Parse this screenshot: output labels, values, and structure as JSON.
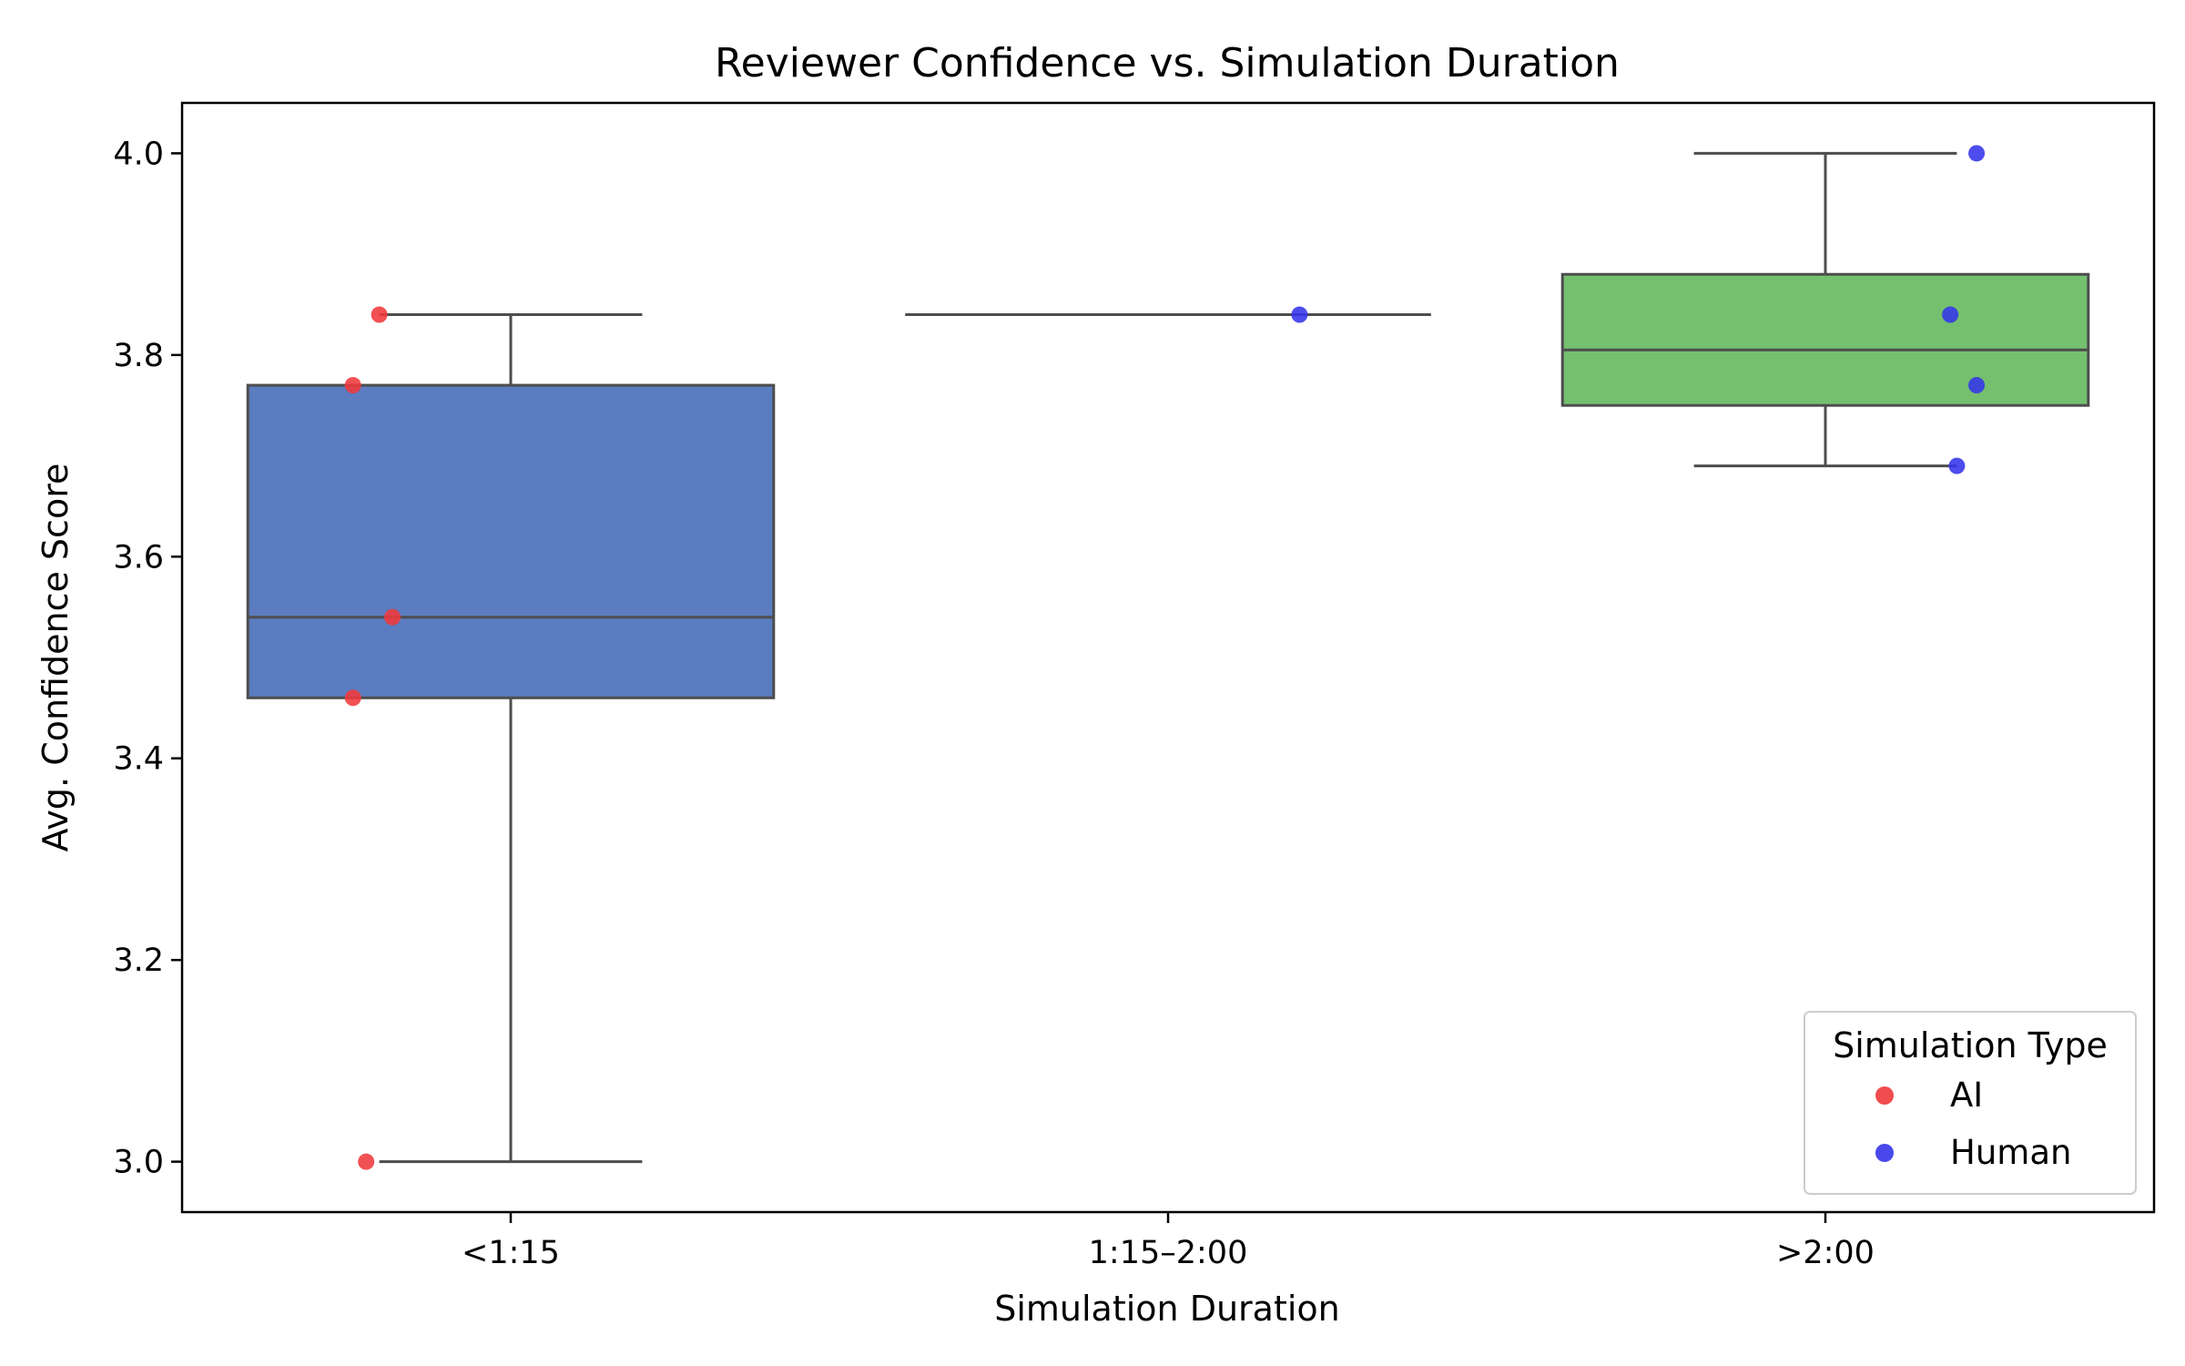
{
  "chart_data": {
    "type": "box",
    "title": "Reviewer Confidence vs. Simulation Duration",
    "xlabel": "Simulation Duration",
    "ylabel": "Avg. Confidence Score",
    "categories": [
      "<1:15",
      "1:15–2:00",
      ">2:00"
    ],
    "ylim": [
      2.95,
      4.05
    ],
    "yticks": [
      3.0,
      3.2,
      3.4,
      3.6,
      3.8,
      4.0
    ],
    "ytick_labels": [
      "3.0",
      "3.2",
      "3.4",
      "3.6",
      "3.8",
      "4.0"
    ],
    "grid": false,
    "boxes": [
      {
        "category": "<1:15",
        "whisker_low": 3.0,
        "q1": 3.46,
        "median": 3.54,
        "q3": 3.77,
        "whisker_high": 3.84,
        "color": "#5b7cc0"
      },
      {
        "category": "1:15–2:00",
        "whisker_low": 3.84,
        "q1": 3.84,
        "median": 3.84,
        "q3": 3.84,
        "whisker_high": 3.84,
        "color": "#ea8a4e"
      },
      {
        "category": ">2:00",
        "whisker_low": 3.69,
        "q1": 3.75,
        "median": 3.805,
        "q3": 3.88,
        "whisker_high": 4.0,
        "color": "#74c06f"
      }
    ],
    "points": [
      {
        "category": "<1:15",
        "jitter": -0.2,
        "value": 3.84,
        "type": "AI"
      },
      {
        "category": "<1:15",
        "jitter": -0.24,
        "value": 3.77,
        "type": "AI"
      },
      {
        "category": "<1:15",
        "jitter": -0.18,
        "value": 3.54,
        "type": "AI"
      },
      {
        "category": "<1:15",
        "jitter": -0.24,
        "value": 3.46,
        "type": "AI"
      },
      {
        "category": "<1:15",
        "jitter": -0.22,
        "value": 3.0,
        "type": "AI"
      },
      {
        "category": "1:15–2:00",
        "jitter": 0.2,
        "value": 3.84,
        "type": "Human"
      },
      {
        "category": ">2:00",
        "jitter": 0.23,
        "value": 4.0,
        "type": "Human"
      },
      {
        "category": ">2:00",
        "jitter": 0.19,
        "value": 3.84,
        "type": "Human"
      },
      {
        "category": ">2:00",
        "jitter": 0.23,
        "value": 3.77,
        "type": "Human"
      },
      {
        "category": ">2:00",
        "jitter": 0.2,
        "value": 3.69,
        "type": "Human"
      }
    ],
    "legend": {
      "title": "Simulation Type",
      "placement": "bottom-right",
      "entries": [
        {
          "label": "AI",
          "color": "#f0393b"
        },
        {
          "label": "Human",
          "color": "#3434ea"
        }
      ]
    },
    "colors": {
      "whisker": "#4d4d4d",
      "axis": "#000000"
    }
  }
}
